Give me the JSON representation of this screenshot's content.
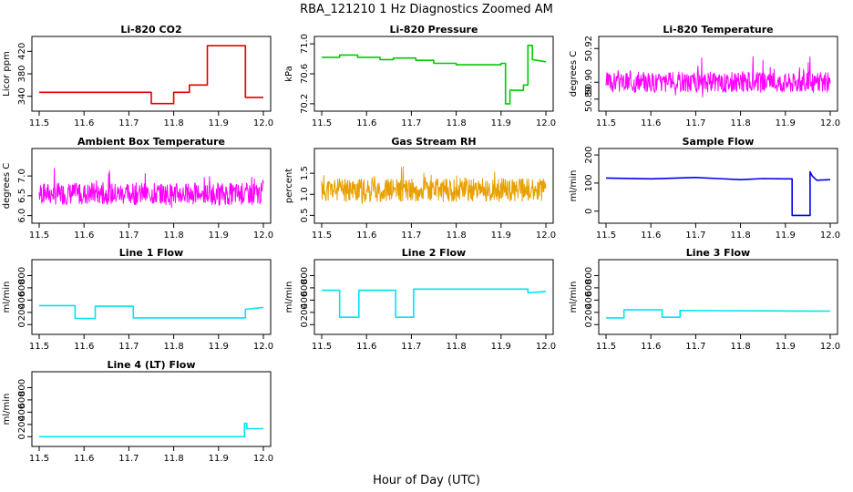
{
  "figure": {
    "title": "RBA_121210  1 Hz Diagnostics Zoomed AM",
    "xlabel": "Hour of Day (UTC)"
  },
  "chart_data": [
    {
      "type": "line",
      "title": "Li-820 CO2",
      "ylabel": "Licor ppm",
      "xlim": [
        11.5,
        12.0
      ],
      "ylim": [
        320,
        440
      ],
      "yticks": [
        "340",
        "380",
        "420"
      ],
      "xticks": [
        "11.5",
        "11.6",
        "11.7",
        "11.8",
        "11.9",
        "12.0"
      ],
      "color": "#e00000",
      "style": "step",
      "series": [
        {
          "name": "CO2",
          "x": [
            11.5,
            11.75,
            11.75,
            11.8,
            11.8,
            11.835,
            11.835,
            11.875,
            11.875,
            11.96,
            11.96,
            12.0
          ],
          "y": [
            347,
            347,
            327,
            327,
            347,
            347,
            360,
            360,
            430,
            430,
            338,
            338
          ]
        }
      ]
    },
    {
      "type": "line",
      "title": "Li-820 Pressure",
      "ylabel": "kPa",
      "xlim": [
        11.5,
        12.0
      ],
      "ylim": [
        70.15,
        71.05
      ],
      "yticks": [
        "70.2",
        "70.6",
        "71.0"
      ],
      "xticks": [
        "11.5",
        "11.6",
        "11.7",
        "11.8",
        "11.9",
        "12.0"
      ],
      "color": "#00cc00",
      "style": "step",
      "series": [
        {
          "name": "Pressure",
          "x": [
            11.5,
            11.54,
            11.54,
            11.58,
            11.58,
            11.63,
            11.63,
            11.66,
            11.66,
            11.71,
            11.71,
            11.75,
            11.75,
            11.8,
            11.8,
            11.9,
            11.9,
            11.91,
            11.91,
            11.92,
            11.92,
            11.95,
            11.95,
            11.96,
            11.96,
            11.97,
            11.97,
            12.0
          ],
          "y": [
            70.82,
            70.82,
            70.85,
            70.85,
            70.82,
            70.82,
            70.79,
            70.79,
            70.81,
            70.81,
            70.78,
            70.78,
            70.74,
            70.74,
            70.72,
            70.72,
            70.74,
            70.74,
            70.2,
            70.2,
            70.38,
            70.38,
            70.45,
            70.45,
            70.98,
            70.98,
            70.79,
            70.76
          ]
        }
      ]
    },
    {
      "type": "line",
      "title": "Li-820 Temperature",
      "ylabel": "degrees C",
      "xlim": [
        11.5,
        12.0
      ],
      "ylim": [
        50.885,
        50.925
      ],
      "yticks": [
        "50.89",
        "50.90",
        "50.92"
      ],
      "xticks": [
        "11.5",
        "11.6",
        "11.7",
        "11.8",
        "11.9",
        "12.0"
      ],
      "color": "#ff00ff",
      "style": "noise",
      "seed": 3,
      "base": 50.9,
      "amp": 0.012,
      "series": [
        {
          "name": "Temperature",
          "x": [
            11.5,
            12.0
          ],
          "y": [
            50.9,
            50.9
          ]
        }
      ]
    },
    {
      "type": "line",
      "title": "Ambient Box Temperature",
      "ylabel": "degrees C",
      "xlim": [
        11.5,
        12.0
      ],
      "ylim": [
        5.9,
        7.6
      ],
      "yticks": [
        "6.0",
        "6.5",
        "7.0"
      ],
      "xticks": [
        "11.5",
        "11.6",
        "11.7",
        "11.8",
        "11.9",
        "12.0"
      ],
      "color": "#ff00ff",
      "style": "noise",
      "seed": 7,
      "base": 6.55,
      "amp": 0.55,
      "series": [
        {
          "name": "Ambient",
          "x": [
            11.5,
            12.0
          ],
          "y": [
            6.55,
            6.55
          ]
        }
      ]
    },
    {
      "type": "line",
      "title": "Gas Stream RH",
      "ylabel": "percent",
      "xlim": [
        11.5,
        12.0
      ],
      "ylim": [
        0.4,
        2.0
      ],
      "yticks": [
        "0.5",
        "1.0",
        "1.5"
      ],
      "xticks": [
        "11.5",
        "11.6",
        "11.7",
        "11.8",
        "11.9",
        "12.0"
      ],
      "color": "#e8a000",
      "style": "noise",
      "seed": 11,
      "base": 1.1,
      "amp": 0.55,
      "series": [
        {
          "name": "RH",
          "x": [
            11.5,
            12.0
          ],
          "y": [
            1.1,
            1.1
          ]
        }
      ]
    },
    {
      "type": "line",
      "title": "Sample Flow",
      "ylabel": "ml/min",
      "xlim": [
        11.5,
        12.0
      ],
      "ylim": [
        -30,
        210
      ],
      "yticks": [
        "0",
        "100",
        "200"
      ],
      "xticks": [
        "11.5",
        "11.6",
        "11.7",
        "11.8",
        "11.9",
        "12.0"
      ],
      "color": "#0000ee",
      "style": "step",
      "series": [
        {
          "name": "Sample Flow",
          "x": [
            11.5,
            11.6,
            11.7,
            11.75,
            11.8,
            11.85,
            11.9,
            11.915,
            11.915,
            11.955,
            11.955,
            11.96,
            11.97,
            12.0
          ],
          "y": [
            118,
            115,
            120,
            116,
            112,
            116,
            115,
            115,
            -15,
            -15,
            140,
            125,
            110,
            112
          ]
        }
      ]
    },
    {
      "type": "line",
      "title": "Line 1 Flow",
      "ylabel": "ml/min",
      "xlim": [
        11.5,
        12.0
      ],
      "ylim": [
        -100,
        1000
      ],
      "yticks": [
        "0",
        "200",
        "400",
        "600",
        "800"
      ],
      "xticks": [
        "11.5",
        "11.6",
        "11.7",
        "11.8",
        "11.9",
        "12.0"
      ],
      "color": "#00e5ee",
      "style": "step",
      "series": [
        {
          "name": "Line 1",
          "x": [
            11.5,
            11.58,
            11.58,
            11.625,
            11.625,
            11.71,
            11.71,
            11.96,
            11.96,
            12.0
          ],
          "y": [
            310,
            310,
            100,
            100,
            300,
            300,
            110,
            110,
            250,
            280
          ]
        }
      ]
    },
    {
      "type": "line",
      "title": "Line 2 Flow",
      "ylabel": "ml/min",
      "xlim": [
        11.5,
        12.0
      ],
      "ylim": [
        -100,
        1000
      ],
      "yticks": [
        "0",
        "200",
        "400",
        "600",
        "800"
      ],
      "xticks": [
        "11.5",
        "11.6",
        "11.7",
        "11.8",
        "11.9",
        "12.0"
      ],
      "color": "#00e5ee",
      "style": "step",
      "series": [
        {
          "name": "Line 2",
          "x": [
            11.5,
            11.54,
            11.54,
            11.583,
            11.583,
            11.665,
            11.665,
            11.705,
            11.705,
            11.96,
            11.96,
            12.0
          ],
          "y": [
            560,
            560,
            120,
            120,
            560,
            560,
            120,
            120,
            580,
            580,
            520,
            540
          ]
        }
      ]
    },
    {
      "type": "line",
      "title": "Line 3 Flow",
      "ylabel": "ml/min",
      "xlim": [
        11.5,
        12.0
      ],
      "ylim": [
        -100,
        1000
      ],
      "yticks": [
        "0",
        "200",
        "400",
        "600",
        "800"
      ],
      "xticks": [
        "11.5",
        "11.6",
        "11.7",
        "11.8",
        "11.9",
        "12.0"
      ],
      "color": "#00e5ee",
      "style": "step",
      "series": [
        {
          "name": "Line 3",
          "x": [
            11.5,
            11.54,
            11.54,
            11.625,
            11.625,
            11.665,
            11.665,
            12.0
          ],
          "y": [
            110,
            110,
            240,
            240,
            120,
            120,
            230,
            220
          ]
        }
      ]
    },
    {
      "type": "line",
      "title": "Line 4 (LT) Flow",
      "ylabel": "ml/min",
      "xlim": [
        11.5,
        12.0
      ],
      "ylim": [
        -100,
        1000
      ],
      "yticks": [
        "0",
        "200",
        "400",
        "600",
        "800"
      ],
      "xticks": [
        "11.5",
        "11.6",
        "11.7",
        "11.8",
        "11.9",
        "12.0"
      ],
      "color": "#00e5ee",
      "style": "step",
      "series": [
        {
          "name": "Line 4",
          "x": [
            11.5,
            11.958,
            11.958,
            11.963,
            11.963,
            12.0
          ],
          "y": [
            0,
            0,
            220,
            220,
            130,
            130
          ]
        }
      ]
    }
  ]
}
